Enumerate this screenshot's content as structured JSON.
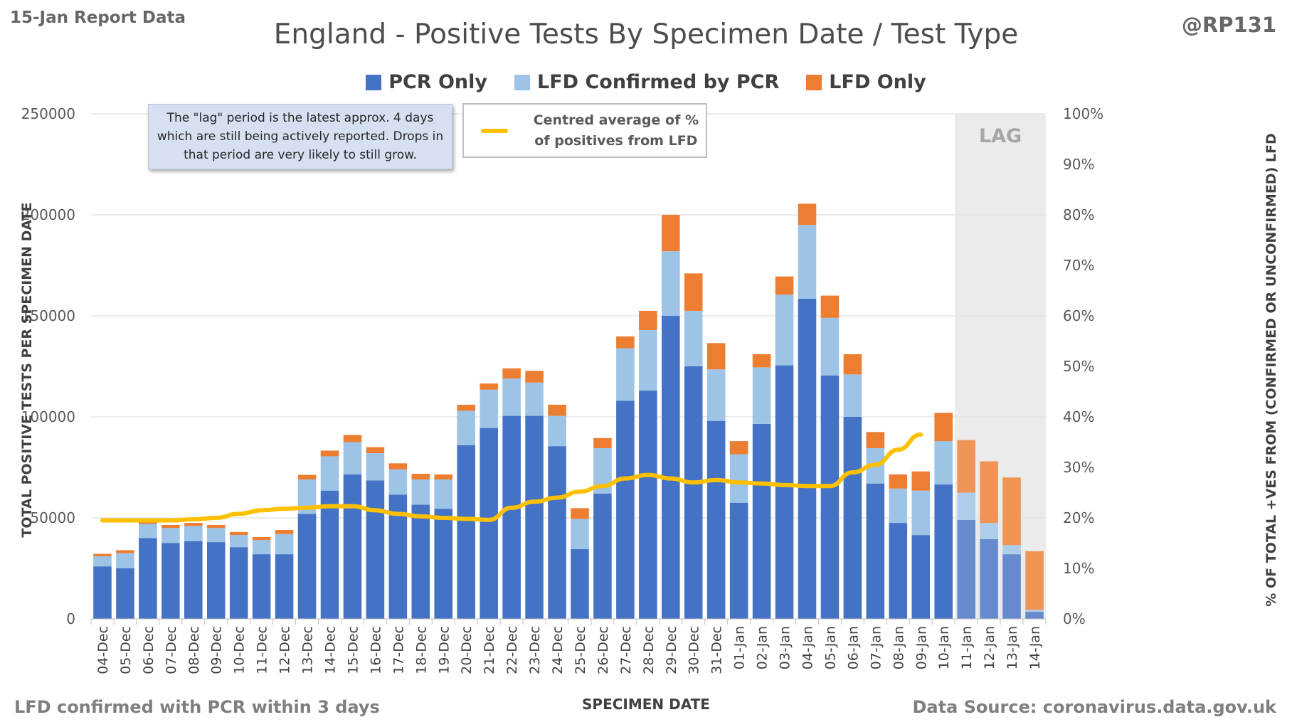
{
  "header": {
    "report_label": "15-Jan Report Data",
    "handle": "@RP131",
    "title": "England - Positive Tests By Specimen Date / Test Type"
  },
  "legend": {
    "pcr": "PCR Only",
    "lfd_confirmed": "LFD Confirmed by PCR",
    "lfd_only": "LFD Only"
  },
  "annotations": {
    "lag_note": "The \"lag\" period is the latest approx. 4 days which are still being actively reported. Drops in that period are very likely to still grow.",
    "avg_line_label": "Centred average of % of positives from LFD",
    "lag_label": "LAG"
  },
  "footer": {
    "left": "LFD confirmed with PCR within 3 days",
    "right": "Data Source: coronavirus.data.gov.uk"
  },
  "colors": {
    "pcr": "#4472c4",
    "lfd_confirmed": "#9dc3e6",
    "lfd_only": "#ed7d31",
    "avg_line": "#ffc000",
    "lag_shade": "#e7e7e7",
    "grid": "#d9d9d9"
  },
  "chart_data": {
    "type": "bar",
    "stacked": true,
    "xlabel": "SPECIMEN DATE",
    "ylabel": "TOTAL POSITIVE TESTS PER SPECIMEN DATE",
    "y2label": "% OF TOTAL +VES FROM (CONFIRMED OR UNCONFIRMED) LFD",
    "ylim": [
      0,
      250000
    ],
    "y2lim": [
      0,
      100
    ],
    "yticks": [
      0,
      50000,
      100000,
      150000,
      200000,
      250000
    ],
    "y2ticks": [
      "0%",
      "10%",
      "20%",
      "30%",
      "40%",
      "50%",
      "60%",
      "70%",
      "80%",
      "90%",
      "100%"
    ],
    "grid": true,
    "legend_position": "top",
    "lag_range": [
      "11-Jan",
      "14-Jan"
    ],
    "categories": [
      "04-Dec",
      "05-Dec",
      "06-Dec",
      "07-Dec",
      "08-Dec",
      "09-Dec",
      "10-Dec",
      "11-Dec",
      "12-Dec",
      "13-Dec",
      "14-Dec",
      "15-Dec",
      "16-Dec",
      "17-Dec",
      "18-Dec",
      "19-Dec",
      "20-Dec",
      "21-Dec",
      "22-Dec",
      "23-Dec",
      "24-Dec",
      "25-Dec",
      "26-Dec",
      "27-Dec",
      "28-Dec",
      "29-Dec",
      "30-Dec",
      "31-Dec",
      "01-Jan",
      "02-Jan",
      "03-Jan",
      "04-Jan",
      "05-Jan",
      "06-Jan",
      "07-Jan",
      "08-Jan",
      "09-Jan",
      "10-Jan",
      "11-Jan",
      "12-Jan",
      "13-Jan",
      "14-Jan"
    ],
    "series": [
      {
        "name": "PCR Only",
        "values": [
          26000,
          25000,
          40000,
          37500,
          38500,
          38000,
          35500,
          32000,
          32000,
          52000,
          63500,
          71500,
          68500,
          61500,
          56500,
          54500,
          86000,
          94500,
          100500,
          100500,
          85500,
          34500,
          62000,
          108000,
          113000,
          150000,
          125000,
          98000,
          57500,
          96500,
          125500,
          158500,
          120500,
          100000,
          67000,
          47500,
          41500,
          66500,
          49000,
          39500,
          32000,
          3500
        ]
      },
      {
        "name": "LFD Confirmed by PCR",
        "values": [
          5000,
          7500,
          7000,
          7500,
          7500,
          7000,
          6000,
          7000,
          10000,
          17000,
          17000,
          16000,
          13500,
          12500,
          12500,
          14500,
          17000,
          19000,
          18500,
          16500,
          15000,
          15000,
          22500,
          26000,
          30000,
          32000,
          27500,
          25500,
          24000,
          28000,
          35000,
          36500,
          28500,
          21000,
          17500,
          17000,
          22000,
          21500,
          13500,
          8000,
          4500,
          1000
        ]
      },
      {
        "name": "LFD Only",
        "values": [
          1200,
          1500,
          1500,
          1500,
          1500,
          1500,
          1500,
          1500,
          2000,
          2300,
          2800,
          3500,
          3000,
          3000,
          2800,
          2500,
          3000,
          3000,
          5000,
          5800,
          5500,
          5300,
          5000,
          5800,
          9500,
          18000,
          18500,
          13000,
          6500,
          6500,
          9000,
          10500,
          11000,
          10000,
          8000,
          7000,
          9500,
          14000,
          26000,
          30500,
          33500,
          29000
        ]
      }
    ],
    "avg_line": {
      "name": "Centred average of % of positives from LFD",
      "values": [
        19.5,
        19.5,
        19.5,
        19.5,
        19.7,
        20.0,
        20.8,
        21.5,
        21.8,
        22.0,
        22.3,
        22.3,
        21.5,
        20.8,
        20.3,
        20.0,
        19.8,
        19.6,
        22.0,
        23.2,
        24.0,
        25.2,
        26.3,
        27.8,
        28.5,
        27.8,
        27.0,
        27.5,
        27.0,
        26.8,
        26.5,
        26.3,
        26.3,
        29.0,
        30.5,
        33.5,
        36.5,
        null,
        null,
        null,
        null,
        null
      ]
    }
  }
}
